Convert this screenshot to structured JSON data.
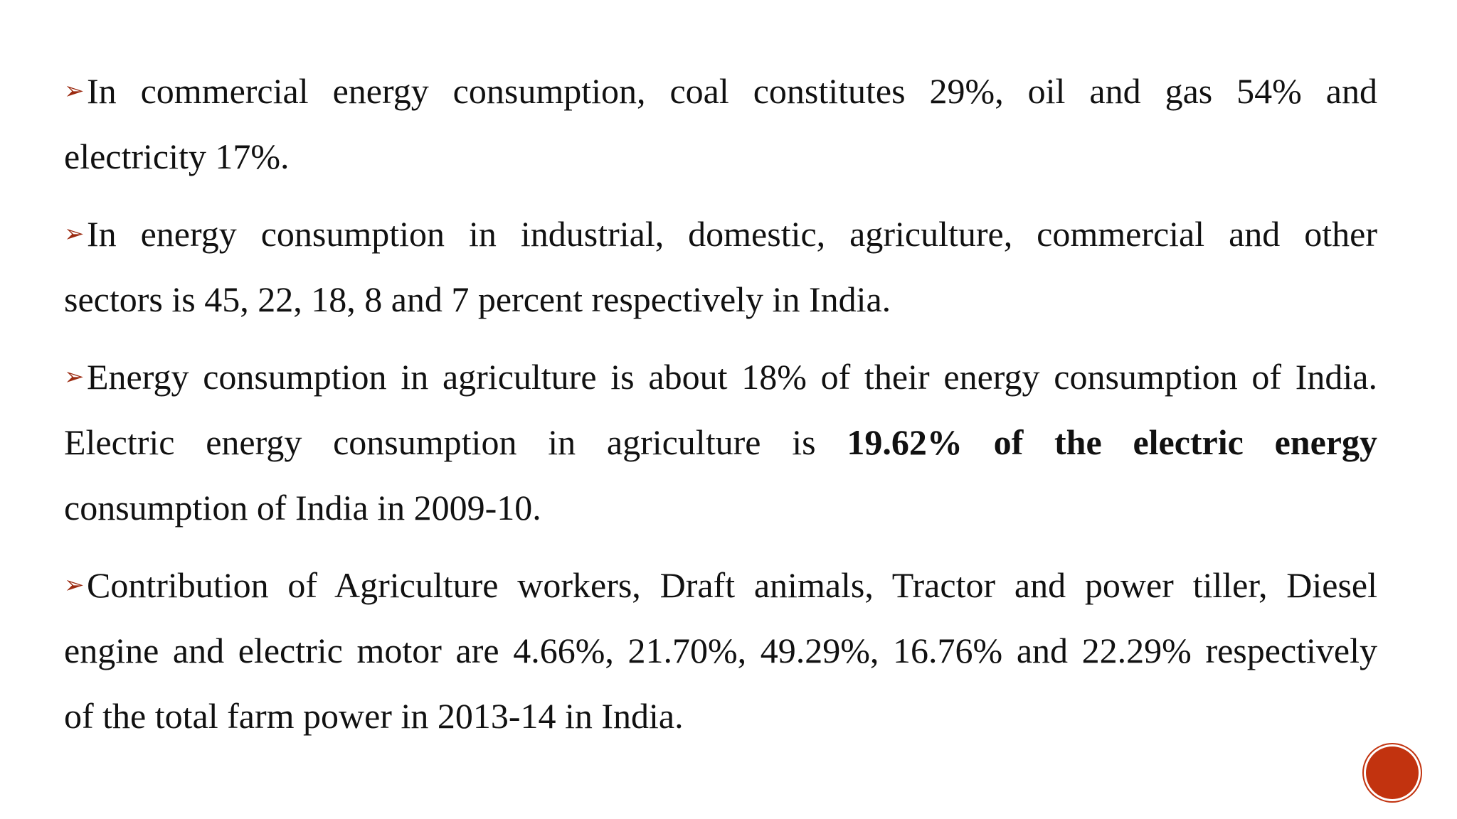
{
  "slide": {
    "bullets": [
      {
        "lines": [
          "In commercial energy consumption, coal constitutes 29%, oil and gas 54% and",
          "electricity 17%."
        ]
      },
      {
        "lines": [
          "In energy consumption in industrial, domestic, agriculture, commercial and other",
          "sectors is 45, 22, 18, 8 and 7 percent respectively in India."
        ]
      },
      {
        "line1": "Energy consumption in agriculture is about 18% of their energy consumption of India.",
        "line2_normal": "Electric energy consumption in agriculture is ",
        "line2_bold": "19.62% of the electric energy",
        "line3": "consumption of India in 2009-10."
      },
      {
        "lines": [
          "Contribution of Agriculture workers, Draft animals, Tractor and power tiller, Diesel",
          "engine and electric motor are 4.66%, 21.70%, 49.29%, 16.76% and 22.29% respectively",
          "of the total farm power in 2013-14 in India."
        ]
      }
    ]
  },
  "icons": {
    "bullet": "arrow-bullet-icon",
    "nav": "slide-nav-button-icon"
  },
  "colors": {
    "accent": "#c2330f",
    "text": "#111111"
  }
}
